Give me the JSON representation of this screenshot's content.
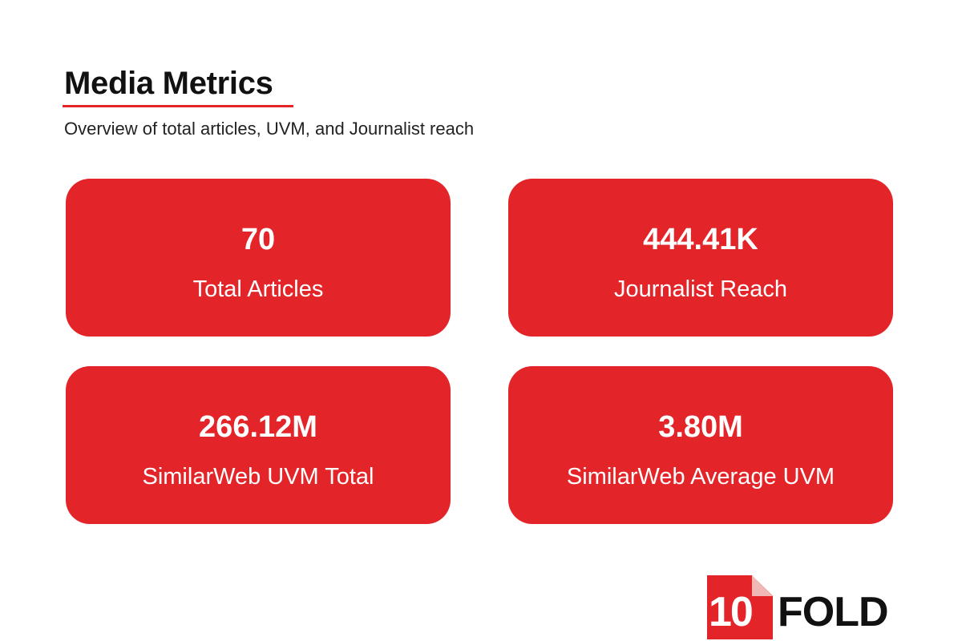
{
  "header": {
    "title": "Media Metrics",
    "subtitle": "Overview of total articles, UVM, and Journalist reach"
  },
  "metrics": [
    {
      "value": "70",
      "label": "Total Articles"
    },
    {
      "value": "444.41K",
      "label": "Journalist Reach"
    },
    {
      "value": "266.12M",
      "label": "SimilarWeb UVM Total"
    },
    {
      "value": "3.80M",
      "label": "SimilarWeb Average UVM"
    }
  ],
  "logo": {
    "number": "10",
    "word": "FOLD"
  },
  "colors": {
    "accent": "#e32428",
    "text": "#111111",
    "card_text": "#ffffff"
  }
}
